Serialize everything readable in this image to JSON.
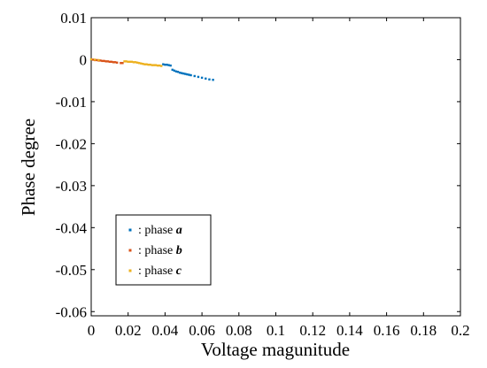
{
  "chart_data": {
    "type": "scatter",
    "xlabel": "Voltage magunitude",
    "ylabel": "Phase degree",
    "xlim": [
      0,
      0.2
    ],
    "ylim": [
      -0.061,
      0.01
    ],
    "xticks": [
      "0",
      "0.02",
      "0.04",
      "0.06",
      "0.08",
      "0.1",
      "0.12",
      "0.14",
      "0.16",
      "0.18",
      "0.2"
    ],
    "xtick_values": [
      0,
      0.02,
      0.04,
      0.06,
      0.08,
      0.1,
      0.12,
      0.14,
      0.16,
      0.18,
      0.2
    ],
    "yticks": [
      "0.01",
      "0",
      "-0.01",
      "-0.02",
      "-0.03",
      "-0.04",
      "-0.05",
      "-0.06"
    ],
    "ytick_values": [
      0.01,
      0,
      -0.01,
      -0.02,
      -0.03,
      -0.04,
      -0.05,
      -0.06
    ],
    "grid": false,
    "legend_position": "bottom-left",
    "series": [
      {
        "name": ": phase ",
        "name_suffix": "a",
        "color": "#0072BD",
        "points": [
          [
            0.039,
            -0.0011
          ],
          [
            0.04,
            -0.0012
          ],
          [
            0.041,
            -0.0012
          ],
          [
            0.042,
            -0.0013
          ],
          [
            0.043,
            -0.0014
          ],
          [
            0.044,
            -0.0024
          ],
          [
            0.045,
            -0.0026
          ],
          [
            0.046,
            -0.0028
          ],
          [
            0.047,
            -0.0029
          ],
          [
            0.048,
            -0.0031
          ],
          [
            0.049,
            -0.0032
          ],
          [
            0.05,
            -0.0033
          ],
          [
            0.051,
            -0.0034
          ],
          [
            0.052,
            -0.0035
          ],
          [
            0.053,
            -0.0036
          ],
          [
            0.054,
            -0.0037
          ],
          [
            0.056,
            -0.0039
          ],
          [
            0.058,
            -0.0041
          ],
          [
            0.06,
            -0.0043
          ],
          [
            0.062,
            -0.0045
          ],
          [
            0.064,
            -0.0047
          ],
          [
            0.066,
            -0.0048
          ]
        ]
      },
      {
        "name": ": phase ",
        "name_suffix": "b",
        "color": "#D95319",
        "points": [
          [
            0.001,
            0.0
          ],
          [
            0.002,
            -0.0001
          ],
          [
            0.003,
            -0.0001
          ],
          [
            0.004,
            -0.0002
          ],
          [
            0.005,
            -0.0002
          ],
          [
            0.006,
            -0.0003
          ],
          [
            0.007,
            -0.0003
          ],
          [
            0.008,
            -0.0004
          ],
          [
            0.009,
            -0.0004
          ],
          [
            0.01,
            -0.0005
          ],
          [
            0.011,
            -0.0005
          ],
          [
            0.012,
            -0.0006
          ],
          [
            0.013,
            -0.0006
          ],
          [
            0.014,
            -0.0007
          ],
          [
            0.016,
            -0.0008
          ],
          [
            0.017,
            -0.0008
          ]
        ]
      },
      {
        "name": ": phase ",
        "name_suffix": "c",
        "color": "#EDB120",
        "points": [
          [
            0.0,
            0.0001
          ],
          [
            0.002,
            0.0
          ],
          [
            0.004,
            -0.0001
          ],
          [
            0.018,
            -0.0004
          ],
          [
            0.019,
            -0.0004
          ],
          [
            0.02,
            -0.0005
          ],
          [
            0.021,
            -0.0005
          ],
          [
            0.022,
            -0.0005
          ],
          [
            0.023,
            -0.0006
          ],
          [
            0.024,
            -0.0006
          ],
          [
            0.025,
            -0.0007
          ],
          [
            0.026,
            -0.0008
          ],
          [
            0.027,
            -0.0009
          ],
          [
            0.028,
            -0.001
          ],
          [
            0.029,
            -0.0011
          ],
          [
            0.03,
            -0.0011
          ],
          [
            0.031,
            -0.0012
          ],
          [
            0.032,
            -0.0012
          ],
          [
            0.033,
            -0.0013
          ],
          [
            0.034,
            -0.0013
          ],
          [
            0.035,
            -0.0013
          ],
          [
            0.036,
            -0.0014
          ],
          [
            0.037,
            -0.0014
          ],
          [
            0.038,
            -0.0015
          ]
        ]
      }
    ]
  }
}
